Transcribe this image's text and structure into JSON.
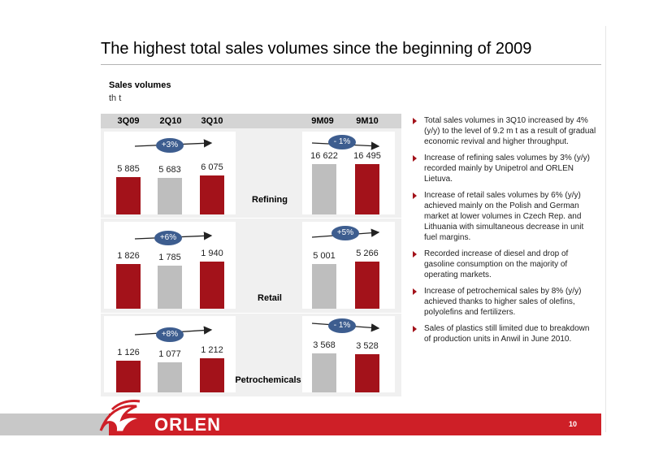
{
  "title": "The highest total sales volumes since the beginning of 2009",
  "subtitle": "Sales volumes",
  "unit": "th t",
  "columns": [
    "3Q09",
    "2Q10",
    "3Q10",
    "9M09",
    "9M10"
  ],
  "colors": {
    "red": "#a3121a",
    "grey": "#bebebe",
    "pill": "#3d5d8f",
    "footer_red": "#ce1f27"
  },
  "chart_data": [
    {
      "type": "bar",
      "title": "Refining",
      "categories": [
        "3Q09",
        "2Q10",
        "3Q10",
        "9M09",
        "9M10"
      ],
      "values": [
        5885,
        5683,
        6075,
        16622,
        16495
      ],
      "value_labels": [
        "5 885",
        "5 683",
        "6 075",
        "16 622",
        "16 495"
      ],
      "change_quarter": "+3%",
      "change_ytd": "- 1%"
    },
    {
      "type": "bar",
      "title": "Retail",
      "categories": [
        "3Q09",
        "2Q10",
        "3Q10",
        "9M09",
        "9M10"
      ],
      "values": [
        1826,
        1785,
        1940,
        5001,
        5266
      ],
      "value_labels": [
        "1 826",
        "1 785",
        "1 940",
        "5 001",
        "5 266"
      ],
      "change_quarter": "+6%",
      "change_ytd": "+5%"
    },
    {
      "type": "bar",
      "title": "Petrochemicals",
      "categories": [
        "3Q09",
        "2Q10",
        "3Q10",
        "9M09",
        "9M10"
      ],
      "values": [
        1126,
        1077,
        1212,
        3568,
        3528
      ],
      "value_labels": [
        "1 126",
        "1 077",
        "1 212",
        "3 568",
        "3 528"
      ],
      "change_quarter": "+8%",
      "change_ytd": "- 1%"
    }
  ],
  "bullets": [
    "Total sales volumes in 3Q10 increased by 4% (y/y) to the level of 9.2  m t as a result of gradual economic revival and higher throughput.",
    "Increase of refining sales volumes by 3% (y/y) recorded mainly by Unipetrol and ORLEN Lietuva.",
    "Increase of retail sales volumes by 6% (y/y) achieved mainly on the Polish and German market at lower volumes in Czech Rep. and Lithuania with simultaneous decrease in unit fuel margins.",
    "Recorded increase of diesel and drop of gasoline consumption on the majority of operating markets.",
    "Increase of petrochemical sales by 8% (y/y) achieved thanks to higher sales of olefins, polyolefins and fertilizers.",
    "Sales of plastics still limited due to breakdown of production units in Anwil in June 2010."
  ],
  "footer": {
    "logo": "ORLEN",
    "page_number": "10",
    "logo_icon": "orlen-eagle-icon"
  }
}
